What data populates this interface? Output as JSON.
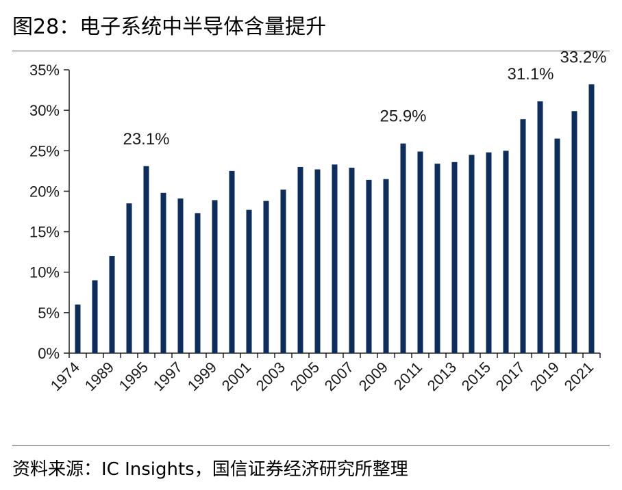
{
  "header": {
    "title": "图28：电子系统中半导体含量提升"
  },
  "footer": {
    "source": "资料来源：IC Insights，国信证券经济研究所整理"
  },
  "chart_data": {
    "type": "bar",
    "bar_color": "#0d2d5c",
    "ylim": [
      0,
      35
    ],
    "yticks": [
      0,
      5,
      10,
      15,
      20,
      25,
      30,
      35
    ],
    "ytick_labels": [
      "0%",
      "5%",
      "10%",
      "15%",
      "20%",
      "25%",
      "30%",
      "35%"
    ],
    "x_tick_labels": [
      "1974",
      "1989",
      "1995",
      "1997",
      "1999",
      "2001",
      "2003",
      "2005",
      "2007",
      "2009",
      "2011",
      "2013",
      "2015",
      "2017",
      "2019",
      "2021"
    ],
    "values": [
      6.0,
      9.0,
      12.0,
      18.5,
      23.1,
      19.8,
      19.1,
      17.3,
      18.9,
      22.5,
      17.7,
      18.8,
      20.2,
      23.0,
      22.7,
      23.3,
      22.9,
      21.4,
      21.5,
      25.9,
      24.9,
      23.4,
      23.6,
      24.5,
      24.8,
      25.0,
      28.9,
      31.1,
      26.5,
      29.9,
      33.2
    ],
    "data_labels": [
      {
        "index": 4,
        "text": "23.1%"
      },
      {
        "index": 19,
        "text": "25.9%"
      },
      {
        "index": 27,
        "text": "31.1%"
      },
      {
        "index": 30,
        "text": "33.2%"
      }
    ],
    "grid": false,
    "legend": "none"
  }
}
